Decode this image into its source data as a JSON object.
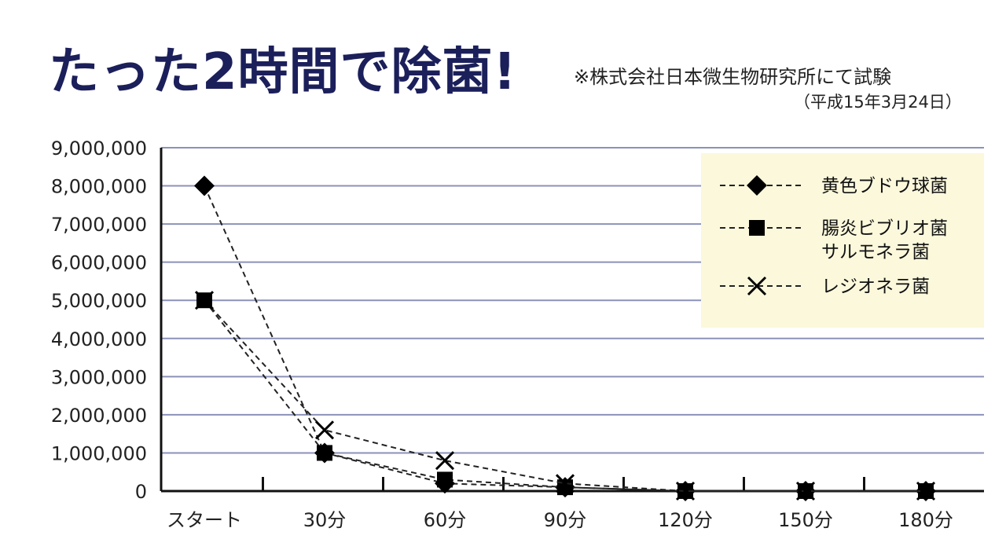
{
  "headline": "たった2時間で除菌!",
  "note": "※株式会社日本微生物研究所にて試験",
  "date": "（平成15年3月24日）",
  "chart_data": {
    "type": "line",
    "categories": [
      "スタート",
      "30分",
      "60分",
      "90分",
      "120分",
      "150分",
      "180分"
    ],
    "ylim": [
      0,
      9000000
    ],
    "yticks": [
      "0",
      "1,000,000",
      "2,000,000",
      "3,000,000",
      "4,000,000",
      "5,000,000",
      "6,000,000",
      "7,000,000",
      "8,000,000",
      "9,000,000"
    ],
    "grid": true,
    "legend_position": "top-right",
    "series": [
      {
        "name": "黄色ブドウ球菌",
        "marker": "diamond",
        "values": [
          8000000,
          1000000,
          200000,
          100000,
          0,
          0,
          0
        ]
      },
      {
        "name": "腸炎ビブリオ菌\nサルモネラ菌",
        "marker": "square",
        "values": [
          5000000,
          1000000,
          300000,
          100000,
          0,
          0,
          0
        ]
      },
      {
        "name": "レジオネラ菌",
        "marker": "x",
        "values": [
          5000000,
          1600000,
          800000,
          200000,
          0,
          0,
          0
        ]
      }
    ]
  }
}
